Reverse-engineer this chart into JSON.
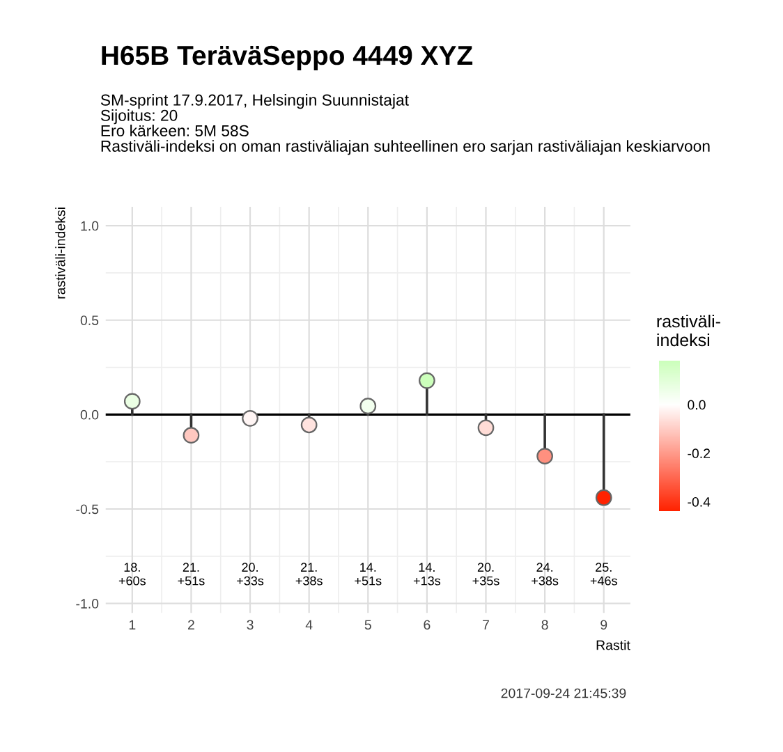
{
  "chart_data": {
    "type": "lollipop",
    "title": "H65B TeräväSeppo 4449 XYZ",
    "subtitle": "SM-sprint 17.9.2017, Helsingin Suunnistajat\nSijoitus: 20\nEro kärkeen: 5M 58S\nRastiväli-indeksi on oman rastiväliajan suhteellinen ero sarjan rastiväliajan keskiarvoon",
    "xlabel": "Rastit",
    "ylabel": "rastiväli-indeksi",
    "clabel": "rastiväli-\nindeksi",
    "x": [
      1,
      2,
      3,
      4,
      5,
      6,
      7,
      8,
      9
    ],
    "values": [
      0.07,
      -0.11,
      -0.02,
      -0.055,
      0.045,
      0.18,
      -0.07,
      -0.22,
      -0.44
    ],
    "cvalues": [
      0.07,
      -0.11,
      -0.02,
      -0.055,
      0.045,
      0.18,
      -0.07,
      -0.22,
      -0.44
    ],
    "clim": [
      -0.44,
      0.18
    ],
    "cticks": [
      {
        "value": 0,
        "label": "0.0"
      },
      -0.2,
      -0.4
    ],
    "xlim": [
      0.55,
      9.45
    ],
    "xticks": [
      1,
      2,
      3,
      4,
      5,
      6,
      7,
      8,
      9
    ],
    "ylim": [
      -1.05,
      1.1
    ],
    "yticks": [
      {
        "value": -1,
        "label": "-1.0"
      },
      -0.5,
      {
        "value": 0,
        "label": "0.0"
      },
      0.5,
      {
        "value": 1,
        "label": "1.0"
      }
    ],
    "grid": true,
    "marker": "circle",
    "ref_lines": [
      {
        "axis": "y",
        "value": 0,
        "color": "#000000"
      }
    ],
    "annotations": [
      "18.\n+60s",
      "21.\n+51s",
      "20.\n+33s",
      "21.\n+38s",
      "14.\n+51s",
      "14.\n+13s",
      "20.\n+35s",
      "24.\n+38s",
      "25.\n+46s",
      "2017-09-24 21:45:39"
    ]
  }
}
